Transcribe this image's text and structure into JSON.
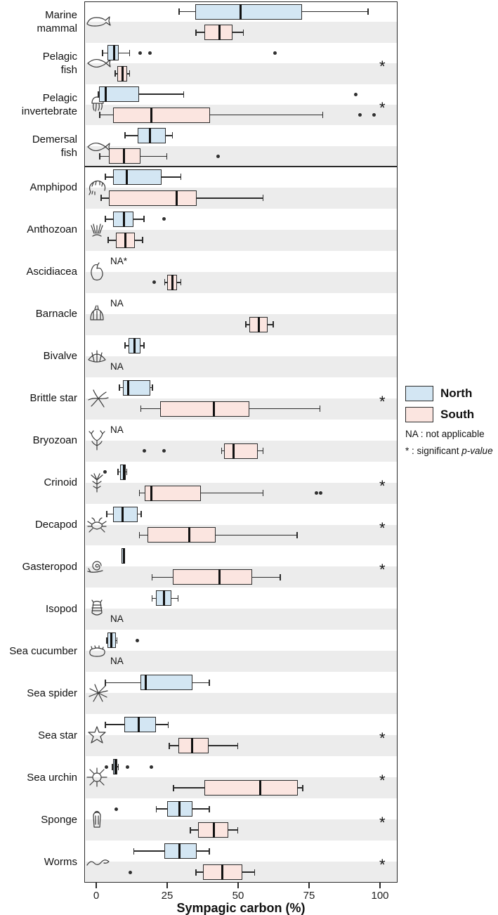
{
  "colors": {
    "north_fill": "#d3e6f3",
    "south_fill": "#fbe5e0",
    "box_stroke": "#2b2b2b",
    "stripe": "#ececec",
    "text": "#111111"
  },
  "legend": {
    "north_label": "North",
    "south_label": "South",
    "note_na": "NA : not applicable",
    "note_sig_prefix": "* : significant ",
    "note_sig_italic": "p-value"
  },
  "chart_data": {
    "type": "boxplot",
    "orientation": "horizontal",
    "title": "",
    "xlabel": "Sympagic carbon (%)",
    "xlim": [
      0,
      100
    ],
    "xticks": [
      0,
      25,
      50,
      75,
      100
    ],
    "grid": false,
    "legend_position": "right",
    "significance_marker": "*",
    "series_names": [
      "North",
      "South"
    ],
    "categories": [
      {
        "label": "Marine mammal",
        "label_lines": [
          "Marine",
          "mammal"
        ],
        "icon": "whale-icon",
        "panel": 1,
        "significant": false,
        "north": {
          "whisker_low": 29,
          "q1": 35,
          "median": 50.5,
          "q3": 72.5,
          "whisker_high": 96,
          "outliers": []
        },
        "south": {
          "whisker_low": 35,
          "q1": 38,
          "median": 43,
          "q3": 48,
          "whisker_high": 52,
          "outliers": []
        },
        "north_na": null,
        "south_na": null
      },
      {
        "label": "Pelagic fish",
        "label_lines": [
          "Pelagic",
          "fish"
        ],
        "icon": "pelagic-fish-icon",
        "panel": 1,
        "significant": true,
        "north": {
          "whisker_low": 2,
          "q1": 4,
          "median": 6,
          "q3": 8,
          "whisker_high": 12,
          "outliers": [
            15.5,
            19,
            63
          ]
        },
        "south": {
          "whisker_low": 6.5,
          "q1": 7.5,
          "median": 9,
          "q3": 11,
          "whisker_high": 12,
          "outliers": []
        },
        "north_na": null,
        "south_na": null
      },
      {
        "label": "Pelagic invertebrate",
        "label_lines": [
          "Pelagic",
          "invertebrate"
        ],
        "icon": "jellyfish-icon",
        "panel": 1,
        "significant": true,
        "north": {
          "whisker_low": 0.5,
          "q1": 1,
          "median": 3,
          "q3": 15,
          "whisker_high": 31,
          "outliers": [
            91.5
          ]
        },
        "south": {
          "whisker_low": 1,
          "q1": 6,
          "median": 19,
          "q3": 40,
          "whisker_high": 80,
          "outliers": [
            93,
            98
          ]
        },
        "north_na": null,
        "south_na": null
      },
      {
        "label": "Demersal fish",
        "label_lines": [
          "Demersal",
          "fish"
        ],
        "icon": "demersal-fish-icon",
        "panel": 1,
        "significant": false,
        "north": {
          "whisker_low": 10,
          "q1": 14.5,
          "median": 18.5,
          "q3": 24.5,
          "whisker_high": 27,
          "outliers": []
        },
        "south": {
          "whisker_low": 1,
          "q1": 4.5,
          "median": 9.5,
          "q3": 15.5,
          "whisker_high": 25,
          "outliers": [
            43
          ]
        },
        "north_na": null,
        "south_na": null
      },
      {
        "label": "Amphipod",
        "label_lines": [
          "Amphipod"
        ],
        "icon": "amphipod-icon",
        "panel": 2,
        "significant": false,
        "north": {
          "whisker_low": 3,
          "q1": 6,
          "median": 10.5,
          "q3": 23,
          "whisker_high": 30,
          "outliers": []
        },
        "south": {
          "whisker_low": 1.5,
          "q1": 4.5,
          "median": 28,
          "q3": 35.5,
          "whisker_high": 59,
          "outliers": []
        },
        "north_na": null,
        "south_na": null
      },
      {
        "label": "Anthozoan",
        "label_lines": [
          "Anthozoan"
        ],
        "icon": "anemone-icon",
        "panel": 2,
        "significant": false,
        "north": {
          "whisker_low": 3,
          "q1": 6,
          "median": 9.5,
          "q3": 13,
          "whisker_high": 17,
          "outliers": [
            24
          ]
        },
        "south": {
          "whisker_low": 4,
          "q1": 7,
          "median": 10,
          "q3": 13.5,
          "whisker_high": 16.5,
          "outliers": []
        },
        "north_na": null,
        "south_na": null
      },
      {
        "label": "Ascidiacea",
        "label_lines": [
          "Ascidiacea"
        ],
        "icon": "sea-squirt-icon",
        "panel": 2,
        "significant": false,
        "north": null,
        "south": {
          "whisker_low": 24,
          "q1": 25,
          "median": 26.5,
          "q3": 28.5,
          "whisker_high": 30,
          "outliers": [
            20.5
          ]
        },
        "north_na": "NA*",
        "south_na": null
      },
      {
        "label": "Barnacle",
        "label_lines": [
          "Barnacle"
        ],
        "icon": "barnacle-icon",
        "panel": 2,
        "significant": false,
        "north": null,
        "south": {
          "whisker_low": 52.5,
          "q1": 54,
          "median": 57,
          "q3": 60.5,
          "whisker_high": 62.5,
          "outliers": []
        },
        "north_na": "NA",
        "south_na": null
      },
      {
        "label": "Bivalve",
        "label_lines": [
          "Bivalve"
        ],
        "icon": "bivalve-shell-icon",
        "panel": 2,
        "significant": false,
        "north": {
          "whisker_low": 10,
          "q1": 11.5,
          "median": 13,
          "q3": 15.5,
          "whisker_high": 17,
          "outliers": []
        },
        "south": null,
        "north_na": null,
        "south_na": "NA"
      },
      {
        "label": "Brittle star",
        "label_lines": [
          "Brittle star"
        ],
        "icon": "brittle-star-icon",
        "panel": 2,
        "significant": true,
        "north": {
          "whisker_low": 8,
          "q1": 9.5,
          "median": 11,
          "q3": 19,
          "whisker_high": 20,
          "outliers": []
        },
        "south": {
          "whisker_low": 15.5,
          "q1": 22.5,
          "median": 41,
          "q3": 54,
          "whisker_high": 79,
          "outliers": []
        },
        "north_na": null,
        "south_na": null
      },
      {
        "label": "Bryozoan",
        "label_lines": [
          "Bryozoan"
        ],
        "icon": "bryozoan-icon",
        "panel": 2,
        "significant": false,
        "north": null,
        "south": {
          "whisker_low": 44,
          "q1": 45,
          "median": 48,
          "q3": 57,
          "whisker_high": 59,
          "outliers": [
            17,
            24
          ]
        },
        "north_na": "NA",
        "south_na": null
      },
      {
        "label": "Crinoid",
        "label_lines": [
          "Crinoid"
        ],
        "icon": "crinoid-icon",
        "panel": 2,
        "significant": true,
        "north": {
          "whisker_low": 7.5,
          "q1": 8.5,
          "median": 9.5,
          "q3": 10.5,
          "whisker_high": 11,
          "outliers": [
            3
          ]
        },
        "south": {
          "whisker_low": 15,
          "q1": 17,
          "median": 19,
          "q3": 37,
          "whisker_high": 59,
          "outliers": [
            77.5,
            79
          ]
        },
        "north_na": null,
        "south_na": null
      },
      {
        "label": "Decapod",
        "label_lines": [
          "Decapod"
        ],
        "icon": "crab-icon",
        "panel": 2,
        "significant": true,
        "north": {
          "whisker_low": 3.5,
          "q1": 6,
          "median": 9,
          "q3": 14.5,
          "whisker_high": 16,
          "outliers": []
        },
        "south": {
          "whisker_low": 15,
          "q1": 18,
          "median": 32.5,
          "q3": 42,
          "whisker_high": 71,
          "outliers": []
        },
        "north_na": null,
        "south_na": null
      },
      {
        "label": "Gasteropod",
        "label_lines": [
          "Gasteropod"
        ],
        "icon": "snail-icon",
        "panel": 2,
        "significant": true,
        "north": {
          "whisker_low": 9,
          "q1": 9,
          "median": 9.5,
          "q3": 10,
          "whisker_high": 10,
          "outliers": []
        },
        "south": {
          "whisker_low": 19.5,
          "q1": 27,
          "median": 43,
          "q3": 55,
          "whisker_high": 65,
          "outliers": []
        },
        "north_na": null,
        "south_na": null
      },
      {
        "label": "Isopod",
        "label_lines": [
          "Isopod"
        ],
        "icon": "isopod-icon",
        "panel": 2,
        "significant": false,
        "north": {
          "whisker_low": 19.5,
          "q1": 21,
          "median": 23.5,
          "q3": 26.5,
          "whisker_high": 29,
          "outliers": []
        },
        "south": null,
        "north_na": null,
        "south_na": "NA"
      },
      {
        "label": "Sea cucumber",
        "label_lines": [
          "Sea cucumber"
        ],
        "icon": "sea-cucumber-icon",
        "panel": 2,
        "significant": false,
        "north": {
          "whisker_low": 3.5,
          "q1": 4,
          "median": 5,
          "q3": 7,
          "whisker_high": 7.5,
          "outliers": [
            14.5
          ]
        },
        "south": null,
        "north_na": null,
        "south_na": "NA"
      },
      {
        "label": "Sea spider",
        "label_lines": [
          "Sea spider"
        ],
        "icon": "sea-spider-icon",
        "panel": 2,
        "significant": false,
        "north": {
          "whisker_low": 3,
          "q1": 15.5,
          "median": 17,
          "q3": 34,
          "whisker_high": 40,
          "outliers": []
        },
        "south": null,
        "north_na": null,
        "south_na": null
      },
      {
        "label": "Sea star",
        "label_lines": [
          "Sea star"
        ],
        "icon": "sea-star-icon",
        "panel": 2,
        "significant": true,
        "north": {
          "whisker_low": 3,
          "q1": 10,
          "median": 14.5,
          "q3": 21,
          "whisker_high": 25.5,
          "outliers": []
        },
        "south": {
          "whisker_low": 25.5,
          "q1": 29,
          "median": 33.5,
          "q3": 39.5,
          "whisker_high": 50,
          "outliers": []
        },
        "north_na": null,
        "south_na": null
      },
      {
        "label": "Sea urchin",
        "label_lines": [
          "Sea urchin"
        ],
        "icon": "sea-urchin-icon",
        "panel": 2,
        "significant": true,
        "north": {
          "whisker_low": 5.5,
          "q1": 6,
          "median": 6.5,
          "q3": 7.5,
          "whisker_high": 8,
          "outliers": [
            3.5,
            11,
            19.5
          ]
        },
        "south": {
          "whisker_low": 27,
          "q1": 38,
          "median": 57.5,
          "q3": 71,
          "whisker_high": 73,
          "outliers": []
        },
        "north_na": null,
        "south_na": null
      },
      {
        "label": "Sponge",
        "label_lines": [
          "Sponge"
        ],
        "icon": "sponge-icon",
        "panel": 2,
        "significant": true,
        "north": {
          "whisker_low": 21,
          "q1": 25,
          "median": 29,
          "q3": 34,
          "whisker_high": 40,
          "outliers": [
            7
          ]
        },
        "south": {
          "whisker_low": 33,
          "q1": 36,
          "median": 41,
          "q3": 46.5,
          "whisker_high": 50,
          "outliers": []
        },
        "north_na": null,
        "south_na": null
      },
      {
        "label": "Worms",
        "label_lines": [
          "Worms"
        ],
        "icon": "worm-icon",
        "panel": 2,
        "significant": true,
        "north": {
          "whisker_low": 13,
          "q1": 24,
          "median": 29,
          "q3": 35.5,
          "whisker_high": 40,
          "outliers": []
        },
        "south": {
          "whisker_low": 35,
          "q1": 37.5,
          "median": 44,
          "q3": 51.5,
          "whisker_high": 56,
          "outliers": [
            12
          ]
        },
        "north_na": null,
        "south_na": null
      }
    ]
  }
}
